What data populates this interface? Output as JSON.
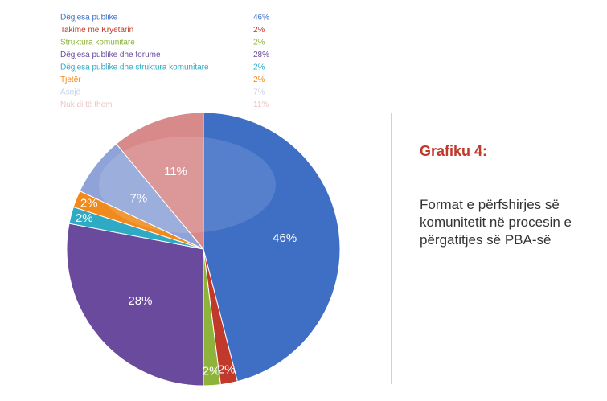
{
  "chart_data": {
    "type": "pie",
    "categories": [
      "Dëgjesa publike",
      "Takime me Kryetarin",
      "Struktura komunitare",
      "Dëgjesa publike dhe forume",
      "Dëgjesa publike dhe struktura komunitare",
      "Tjetër",
      "Asnjë",
      "Nuk di të them"
    ],
    "values": [
      46,
      2,
      2,
      28,
      2,
      2,
      7,
      11
    ],
    "value_labels": [
      "46%",
      "2%",
      "2%",
      "28%",
      "2%",
      "2%",
      "7%",
      "11%"
    ],
    "colors": [
      "#3f6fc4",
      "#c0392b",
      "#8db33a",
      "#6a4a9c",
      "#2eaac4",
      "#f08a1c",
      "#8fa3d8",
      "#d88a8a"
    ],
    "title": "Grafiku 4:",
    "subtitle": "Format e përfshirjes së komunitetit në procesin e përgatitjes së PBA-së"
  }
}
